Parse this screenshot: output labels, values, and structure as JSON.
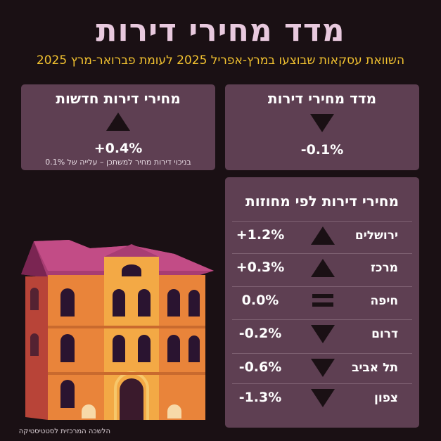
{
  "title": "מדד מחירי דירות",
  "subtitle": "השוואת עסקאות שבוצעו במרץ-אפריל 2025 לעומת פברואר-מרץ 2025",
  "index_card": {
    "title": "מדד מחירי דירות",
    "value": "-0.1%",
    "direction": "down"
  },
  "new_card": {
    "title": "מחירי דירות חדשות",
    "value": "+0.4%",
    "direction": "up",
    "note": "בניכוי דירות מחיר למשתכן – עלייה של 0.1%"
  },
  "districts": {
    "title": "מחירי דירות לפי מחוזות",
    "rows": [
      {
        "label": "ירושלים",
        "value": "+1.2%",
        "direction": "up"
      },
      {
        "label": "מרכז",
        "value": "+0.3%",
        "direction": "up"
      },
      {
        "label": "חיפה",
        "value": "0.0%",
        "direction": "equal"
      },
      {
        "label": "דרום",
        "value": "-0.2%",
        "direction": "down"
      },
      {
        "label": "תל אביב",
        "value": "-0.6%",
        "direction": "down"
      },
      {
        "label": "צפון",
        "value": "-1.3%",
        "direction": "down"
      }
    ]
  },
  "source": "הלשכה המרכזית לסטטיסטיקה",
  "colors": {
    "background": "#1a1014",
    "card": "#5e3f52",
    "title": "#e8c9de",
    "subtitle": "#f2c230"
  }
}
